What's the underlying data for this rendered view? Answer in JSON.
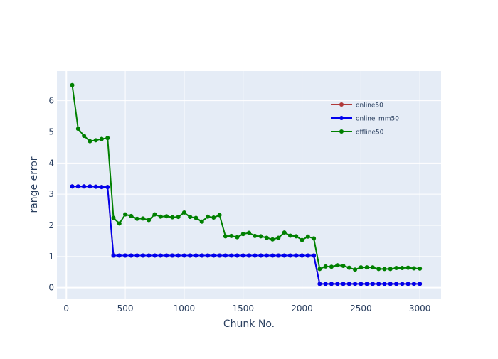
{
  "chart_data": {
    "type": "line",
    "title": "",
    "xlabel": "Chunk No.",
    "ylabel": "range error",
    "xlim": [
      -80,
      3180
    ],
    "ylim": [
      -0.35,
      6.95
    ],
    "x_ticks": [
      0,
      500,
      1000,
      1500,
      2000,
      2500,
      3000
    ],
    "y_ticks": [
      0,
      1,
      2,
      3,
      4,
      5,
      6
    ],
    "grid": true,
    "legend_position": "top-right",
    "colors": {
      "plot_bg": "#E5ECF6",
      "grid": "#ffffff",
      "text": "#2a3f5f"
    },
    "series": [
      {
        "name": "online50",
        "color": "#b03a3a",
        "x": [
          50,
          100,
          150,
          200,
          250,
          300,
          350,
          400,
          450,
          500,
          550,
          600,
          650,
          700,
          750,
          800,
          850,
          900,
          950,
          1000,
          1050,
          1100,
          1150,
          1200,
          1250,
          1300,
          1350,
          1400,
          1450,
          1500,
          1550,
          1600,
          1650,
          1700,
          1750,
          1800,
          1850,
          1900,
          1950,
          2000,
          2050,
          2100,
          2150,
          2200,
          2250,
          2300,
          2350,
          2400,
          2450,
          2500,
          2550,
          2600,
          2650,
          2700,
          2750,
          2800,
          2850,
          2900,
          2950,
          3000
        ],
        "values": [
          3.25,
          3.25,
          3.25,
          3.25,
          3.24,
          3.23,
          3.23,
          1.03,
          1.03,
          1.03,
          1.03,
          1.03,
          1.03,
          1.03,
          1.03,
          1.03,
          1.03,
          1.03,
          1.03,
          1.03,
          1.03,
          1.03,
          1.03,
          1.03,
          1.03,
          1.03,
          1.03,
          1.03,
          1.03,
          1.03,
          1.03,
          1.03,
          1.03,
          1.03,
          1.03,
          1.03,
          1.03,
          1.03,
          1.03,
          1.03,
          1.03,
          1.03,
          0.12,
          0.12,
          0.12,
          0.12,
          0.12,
          0.12,
          0.12,
          0.12,
          0.12,
          0.12,
          0.12,
          0.12,
          0.12,
          0.12,
          0.12,
          0.12,
          0.12,
          0.12
        ]
      },
      {
        "name": "online_mm50",
        "color": "#0000ee",
        "x": [
          50,
          100,
          150,
          200,
          250,
          300,
          350,
          400,
          450,
          500,
          550,
          600,
          650,
          700,
          750,
          800,
          850,
          900,
          950,
          1000,
          1050,
          1100,
          1150,
          1200,
          1250,
          1300,
          1350,
          1400,
          1450,
          1500,
          1550,
          1600,
          1650,
          1700,
          1750,
          1800,
          1850,
          1900,
          1950,
          2000,
          2050,
          2100,
          2150,
          2200,
          2250,
          2300,
          2350,
          2400,
          2450,
          2500,
          2550,
          2600,
          2650,
          2700,
          2750,
          2800,
          2850,
          2900,
          2950,
          3000
        ],
        "values": [
          3.25,
          3.25,
          3.25,
          3.25,
          3.24,
          3.23,
          3.23,
          1.03,
          1.03,
          1.03,
          1.03,
          1.03,
          1.03,
          1.03,
          1.03,
          1.03,
          1.03,
          1.03,
          1.03,
          1.03,
          1.03,
          1.03,
          1.03,
          1.03,
          1.03,
          1.03,
          1.03,
          1.03,
          1.03,
          1.03,
          1.03,
          1.03,
          1.03,
          1.03,
          1.03,
          1.03,
          1.03,
          1.03,
          1.03,
          1.03,
          1.03,
          1.03,
          0.12,
          0.12,
          0.12,
          0.12,
          0.12,
          0.12,
          0.12,
          0.12,
          0.12,
          0.12,
          0.12,
          0.12,
          0.12,
          0.12,
          0.12,
          0.12,
          0.12,
          0.12
        ]
      },
      {
        "name": "offline50",
        "color": "#008000",
        "x": [
          50,
          100,
          150,
          200,
          250,
          300,
          350,
          400,
          450,
          500,
          550,
          600,
          650,
          700,
          750,
          800,
          850,
          900,
          950,
          1000,
          1050,
          1100,
          1150,
          1200,
          1250,
          1300,
          1350,
          1400,
          1450,
          1500,
          1550,
          1600,
          1650,
          1700,
          1750,
          1800,
          1850,
          1900,
          1950,
          2000,
          2050,
          2100,
          2150,
          2200,
          2250,
          2300,
          2350,
          2400,
          2450,
          2500,
          2550,
          2600,
          2650,
          2700,
          2750,
          2800,
          2850,
          2900,
          2950,
          3000
        ],
        "values": [
          6.5,
          5.1,
          4.87,
          4.7,
          4.73,
          4.77,
          4.8,
          2.24,
          2.06,
          2.35,
          2.3,
          2.21,
          2.22,
          2.17,
          2.35,
          2.28,
          2.29,
          2.26,
          2.27,
          2.41,
          2.27,
          2.24,
          2.12,
          2.28,
          2.25,
          2.33,
          1.65,
          1.66,
          1.62,
          1.72,
          1.76,
          1.66,
          1.65,
          1.6,
          1.55,
          1.6,
          1.77,
          1.67,
          1.65,
          1.53,
          1.64,
          1.58,
          0.6,
          0.68,
          0.67,
          0.72,
          0.7,
          0.64,
          0.58,
          0.65,
          0.65,
          0.65,
          0.6,
          0.6,
          0.6,
          0.63,
          0.63,
          0.64,
          0.62,
          0.61
        ]
      }
    ]
  }
}
